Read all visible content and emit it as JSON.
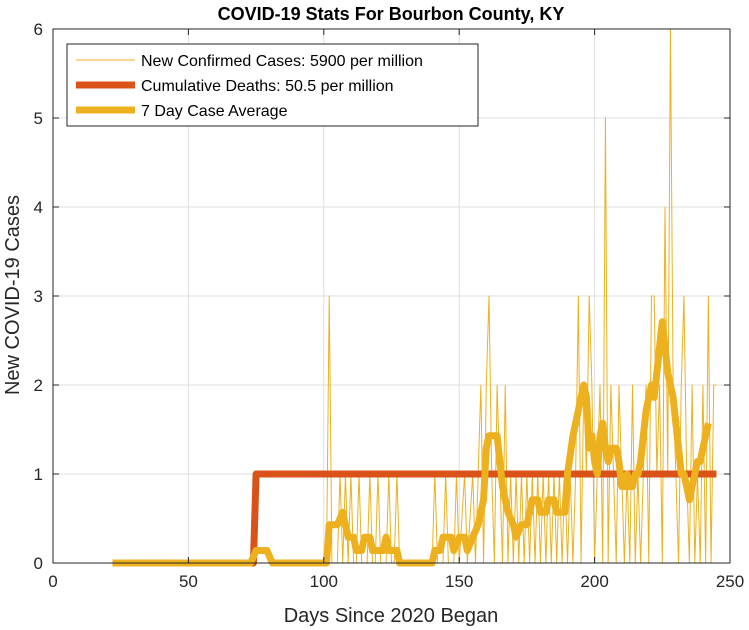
{
  "chart_data": {
    "type": "line",
    "title": "COVID-19 Stats For Bourbon County, KY",
    "xlabel": "Days Since 2020 Began",
    "ylabel": "New COVID-19 Cases",
    "xlim": [
      0,
      250
    ],
    "ylim": [
      0,
      6
    ],
    "xticks": [
      0,
      50,
      100,
      150,
      200,
      250
    ],
    "yticks": [
      0,
      1,
      2,
      3,
      4,
      5,
      6
    ],
    "grid": true,
    "legend_position": "top-left",
    "colors": {
      "cases": "#EDB120",
      "deaths": "#D95319",
      "average": "#EDB120"
    },
    "series": [
      {
        "name": "New Confirmed Cases: 5900 per million",
        "style": "thin",
        "points": [
          [
            22,
            0
          ],
          [
            100,
            0
          ],
          [
            101,
            0
          ],
          [
            102,
            3
          ],
          [
            103,
            0
          ],
          [
            104,
            0
          ],
          [
            105,
            0
          ],
          [
            106,
            1
          ],
          [
            107,
            0
          ],
          [
            108,
            1
          ],
          [
            109,
            0
          ],
          [
            110,
            1
          ],
          [
            111,
            0
          ],
          [
            112,
            0
          ],
          [
            113,
            1
          ],
          [
            114,
            0
          ],
          [
            115,
            0
          ],
          [
            116,
            0
          ],
          [
            117,
            1
          ],
          [
            118,
            0
          ],
          [
            119,
            0
          ],
          [
            120,
            1
          ],
          [
            121,
            0
          ],
          [
            122,
            0
          ],
          [
            123,
            0
          ],
          [
            124,
            1
          ],
          [
            125,
            0
          ],
          [
            126,
            0
          ],
          [
            127,
            1
          ],
          [
            128,
            0
          ],
          [
            140,
            0
          ],
          [
            141,
            1
          ],
          [
            142,
            0
          ],
          [
            144,
            0
          ],
          [
            145,
            1
          ],
          [
            146,
            0
          ],
          [
            148,
            0
          ],
          [
            149,
            1
          ],
          [
            150,
            0
          ],
          [
            152,
            1
          ],
          [
            153,
            0
          ],
          [
            155,
            1
          ],
          [
            156,
            0
          ],
          [
            157,
            1
          ],
          [
            158,
            2
          ],
          [
            159,
            0
          ],
          [
            160,
            2
          ],
          [
            161,
            3
          ],
          [
            162,
            1
          ],
          [
            163,
            0
          ],
          [
            164,
            2
          ],
          [
            165,
            1
          ],
          [
            166,
            0
          ],
          [
            167,
            2
          ],
          [
            168,
            0
          ],
          [
            169,
            1
          ],
          [
            170,
            0
          ],
          [
            171,
            1
          ],
          [
            172,
            0
          ],
          [
            173,
            1
          ],
          [
            174,
            0
          ],
          [
            175,
            1
          ],
          [
            176,
            0
          ],
          [
            177,
            1
          ],
          [
            178,
            0
          ],
          [
            179,
            1
          ],
          [
            180,
            0
          ],
          [
            181,
            1
          ],
          [
            182,
            0
          ],
          [
            183,
            1
          ],
          [
            184,
            0
          ],
          [
            185,
            1
          ],
          [
            186,
            0
          ],
          [
            187,
            1
          ],
          [
            188,
            0
          ],
          [
            189,
            1
          ],
          [
            190,
            0
          ],
          [
            191,
            1
          ],
          [
            192,
            0
          ],
          [
            193,
            1
          ],
          [
            194,
            3
          ],
          [
            195,
            0
          ],
          [
            196,
            2
          ],
          [
            197,
            1
          ],
          [
            198,
            3
          ],
          [
            199,
            2
          ],
          [
            200,
            0
          ],
          [
            201,
            1
          ],
          [
            202,
            2
          ],
          [
            203,
            0
          ],
          [
            204,
            5
          ],
          [
            205,
            0
          ],
          [
            206,
            2
          ],
          [
            207,
            1
          ],
          [
            208,
            0
          ],
          [
            209,
            2
          ],
          [
            210,
            1
          ],
          [
            211,
            0
          ],
          [
            212,
            1
          ],
          [
            213,
            0
          ],
          [
            214,
            2
          ],
          [
            215,
            0
          ],
          [
            216,
            1
          ],
          [
            217,
            0
          ],
          [
            218,
            1
          ],
          [
            219,
            2
          ],
          [
            220,
            0
          ],
          [
            221,
            3
          ],
          [
            222,
            3
          ],
          [
            223,
            1
          ],
          [
            224,
            2
          ],
          [
            225,
            0
          ],
          [
            226,
            4
          ],
          [
            227,
            1
          ],
          [
            228,
            6
          ],
          [
            229,
            2
          ],
          [
            230,
            1
          ],
          [
            231,
            0
          ],
          [
            232,
            2
          ],
          [
            233,
            3
          ],
          [
            234,
            1
          ],
          [
            235,
            0
          ],
          [
            236,
            2
          ],
          [
            237,
            0
          ],
          [
            238,
            1
          ],
          [
            239,
            0
          ],
          [
            240,
            2
          ],
          [
            241,
            0
          ],
          [
            242,
            3
          ],
          [
            243,
            0
          ],
          [
            244,
            2
          ],
          [
            245,
            2
          ]
        ]
      },
      {
        "name": "Cumulative Deaths: 50.5 per million",
        "style": "thick",
        "points": [
          [
            22,
            0
          ],
          [
            74,
            0
          ],
          [
            75,
            1
          ],
          [
            245,
            1
          ]
        ]
      },
      {
        "name": "7 Day Case Average",
        "style": "medium",
        "points": [
          [
            22,
            0
          ],
          [
            73,
            0
          ],
          [
            75,
            0.14
          ],
          [
            79,
            0.14
          ],
          [
            81,
            0
          ],
          [
            100,
            0
          ],
          [
            101,
            0
          ],
          [
            102,
            0.43
          ],
          [
            105,
            0.43
          ],
          [
            107,
            0.57
          ],
          [
            108,
            0.43
          ],
          [
            109,
            0.29
          ],
          [
            111,
            0.29
          ],
          [
            112,
            0.14
          ],
          [
            114,
            0.14
          ],
          [
            115,
            0.29
          ],
          [
            117,
            0.29
          ],
          [
            118,
            0.14
          ],
          [
            122,
            0.14
          ],
          [
            123,
            0.29
          ],
          [
            124,
            0.14
          ],
          [
            127,
            0.14
          ],
          [
            128,
            0
          ],
          [
            140,
            0
          ],
          [
            141,
            0.14
          ],
          [
            143,
            0.14
          ],
          [
            144,
            0.29
          ],
          [
            147,
            0.29
          ],
          [
            148,
            0.14
          ],
          [
            150,
            0.29
          ],
          [
            152,
            0.29
          ],
          [
            153,
            0.14
          ],
          [
            155,
            0.29
          ],
          [
            157,
            0.43
          ],
          [
            159,
            0.71
          ],
          [
            160,
            1.29
          ],
          [
            161,
            1.43
          ],
          [
            164,
            1.43
          ],
          [
            165,
            1.14
          ],
          [
            166,
            0.86
          ],
          [
            167,
            0.71
          ],
          [
            168,
            0.57
          ],
          [
            170,
            0.43
          ],
          [
            171,
            0.29
          ],
          [
            173,
            0.43
          ],
          [
            175,
            0.43
          ],
          [
            176,
            0.57
          ],
          [
            177,
            0.71
          ],
          [
            179,
            0.71
          ],
          [
            180,
            0.57
          ],
          [
            182,
            0.57
          ],
          [
            183,
            0.71
          ],
          [
            185,
            0.71
          ],
          [
            186,
            0.57
          ],
          [
            189,
            0.57
          ],
          [
            190,
            1.0
          ],
          [
            192,
            1.43
          ],
          [
            193,
            1.57
          ],
          [
            195,
            1.86
          ],
          [
            196,
            2.0
          ],
          [
            197,
            1.86
          ],
          [
            198,
            1.29
          ],
          [
            199,
            1.43
          ],
          [
            200,
            1.14
          ],
          [
            201,
            1.0
          ],
          [
            202,
            1.43
          ],
          [
            203,
            1.57
          ],
          [
            204,
            1.29
          ],
          [
            205,
            1.14
          ],
          [
            206,
            1.29
          ],
          [
            208,
            1.29
          ],
          [
            209,
            1.14
          ],
          [
            210,
            0.86
          ],
          [
            211,
            0.86
          ],
          [
            212,
            1.0
          ],
          [
            213,
            0.86
          ],
          [
            214,
            0.86
          ],
          [
            215,
            1.0
          ],
          [
            216,
            1.0
          ],
          [
            217,
            1.14
          ],
          [
            218,
            1.43
          ],
          [
            219,
            1.71
          ],
          [
            220,
            1.86
          ],
          [
            221,
            2.0
          ],
          [
            222,
            1.86
          ],
          [
            223,
            2.14
          ],
          [
            224,
            2.43
          ],
          [
            225,
            2.71
          ],
          [
            226,
            2.43
          ],
          [
            227,
            2.14
          ],
          [
            228,
            2.0
          ],
          [
            229,
            1.86
          ],
          [
            230,
            1.57
          ],
          [
            231,
            1.29
          ],
          [
            232,
            1.0
          ],
          [
            233,
            1.0
          ],
          [
            234,
            0.86
          ],
          [
            235,
            0.71
          ],
          [
            236,
            0.86
          ],
          [
            237,
            1.0
          ],
          [
            238,
            1.14
          ],
          [
            239,
            1.14
          ],
          [
            240,
            1.29
          ],
          [
            241,
            1.43
          ],
          [
            242,
            1.57
          ]
        ]
      }
    ]
  }
}
